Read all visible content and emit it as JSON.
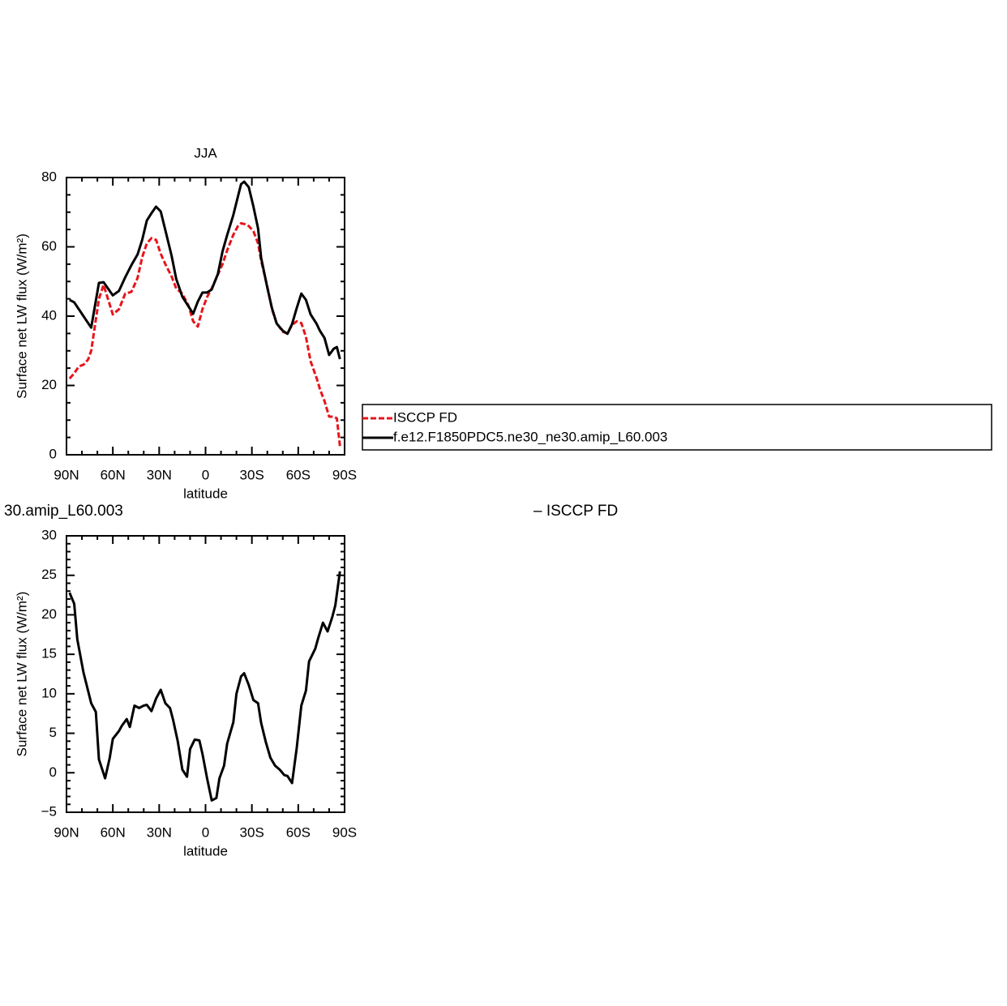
{
  "chart_data": [
    {
      "type": "line",
      "title": "JJA",
      "xlabel": "latitude",
      "ylabel": "Surface net LW flux (W/m²)",
      "x": [
        88,
        85,
        82,
        79,
        76,
        74,
        69,
        66,
        60,
        56,
        52,
        48,
        44,
        41,
        38,
        35,
        32,
        29,
        26,
        22,
        19,
        15,
        11,
        8,
        5,
        2,
        -1,
        -4,
        -8,
        -11,
        -14,
        -18,
        -21,
        -23,
        -25,
        -28,
        -31,
        -34,
        -36,
        -40,
        -43,
        -46,
        -50,
        -53,
        -56,
        -59,
        -62,
        -65,
        -68,
        -72,
        -74,
        -77,
        -80,
        -83,
        -85,
        -87
      ],
      "series": [
        {
          "name": "ISCCP FD",
          "color": "#e8141b",
          "dashed": true,
          "values": [
            22,
            23.5,
            25.5,
            26,
            27.5,
            30,
            45,
            49,
            40.5,
            42,
            46.5,
            47,
            51,
            57,
            61,
            62.5,
            62,
            58,
            55,
            51.5,
            48,
            46.5,
            43,
            38.5,
            37,
            42,
            45.5,
            48,
            52,
            55,
            59,
            63.5,
            66,
            66.8,
            66.6,
            66,
            64.5,
            61,
            56,
            48.5,
            42,
            38,
            35.5,
            35,
            37.5,
            38.5,
            38,
            34,
            27,
            22,
            19,
            15.5,
            11,
            11,
            10.5,
            2.5
          ]
        },
        {
          "name": "f.e12.F1850PDC5.ne30_ne30.amip_L60.003",
          "color": "#000000",
          "dashed": false,
          "values": [
            44.7,
            44,
            42,
            40,
            38,
            36.7,
            49.6,
            49.8,
            46,
            47.3,
            51.2,
            54.7,
            57.8,
            62,
            67.6,
            69.7,
            71.6,
            70.2,
            64.8,
            57.5,
            50.8,
            45.6,
            42.8,
            40.7,
            44.2,
            46.8,
            46.8,
            47.7,
            52.2,
            58.7,
            63.4,
            69.2,
            74.6,
            78.1,
            78.8,
            77.2,
            71.6,
            65.3,
            56.8,
            48.2,
            42.3,
            37.9,
            35.8,
            34.9,
            37.7,
            42.3,
            46.5,
            44.7,
            40.5,
            37.7,
            35.8,
            33.7,
            28.8,
            30.6,
            31.1,
            27.6
          ]
        }
      ],
      "xlim": [
        90,
        -90
      ],
      "xticks": [
        {
          "value": 90,
          "label": "90N"
        },
        {
          "value": 60,
          "label": "60N"
        },
        {
          "value": 30,
          "label": "30N"
        },
        0,
        {
          "value": -30,
          "label": "30S"
        },
        {
          "value": -60,
          "label": "60S"
        },
        {
          "value": -90,
          "label": "90S"
        }
      ],
      "ylim": [
        0,
        80
      ],
      "yticks": [
        0,
        20,
        40,
        60,
        80
      ],
      "legend": "right"
    },
    {
      "type": "line",
      "title_left": "30.amip_L60.003",
      "title_right": "– ISCCP FD",
      "xlabel": "latitude",
      "ylabel": "Surface net LW flux (W/m²)",
      "x": [
        88,
        85,
        83,
        79,
        74,
        71,
        69,
        65,
        62,
        60,
        56,
        54,
        51,
        49,
        46,
        43,
        40,
        38,
        35,
        32,
        29,
        26,
        23,
        21,
        18,
        15,
        12,
        10,
        7,
        4,
        2,
        -1,
        -4,
        -7,
        -9,
        -12,
        -14,
        -18,
        -20,
        -23,
        -25,
        -28,
        -31,
        -34,
        -36,
        -39,
        -42,
        -45,
        -48,
        -51,
        -53,
        -56,
        -59,
        -62,
        -65,
        -67,
        -71,
        -73,
        -76,
        -79,
        -82,
        -84,
        -87
      ],
      "values": [
        22.8,
        21.4,
        16.9,
        12.7,
        8.8,
        7.7,
        1.7,
        -0.7,
        1.9,
        4.3,
        5.3,
        6.0,
        6.8,
        5.8,
        8.5,
        8.2,
        8.5,
        8.6,
        7.8,
        9.4,
        10.5,
        8.8,
        8.2,
        6.7,
        4.0,
        0.4,
        -0.5,
        3.0,
        4.2,
        4.1,
        2.4,
        -0.7,
        -3.5,
        -3.2,
        -0.7,
        0.9,
        3.7,
        6.4,
        10.0,
        12.2,
        12.6,
        11.1,
        9.2,
        8.8,
        6.3,
        3.9,
        1.9,
        0.9,
        0.4,
        -0.3,
        -0.4,
        -1.3,
        3.1,
        8.5,
        10.4,
        14.1,
        15.7,
        17.1,
        19.0,
        17.9,
        19.7,
        21.2,
        25.5
      ],
      "color": "#000000",
      "xlim": [
        90,
        -90
      ],
      "xticks": [
        {
          "value": 90,
          "label": "90N"
        },
        {
          "value": 60,
          "label": "60N"
        },
        {
          "value": 30,
          "label": "30N"
        },
        0,
        {
          "value": -30,
          "label": "30S"
        },
        {
          "value": -60,
          "label": "60S"
        },
        {
          "value": -90,
          "label": "90S"
        }
      ],
      "ylim": [
        -5,
        30
      ],
      "yticks": [
        {
          "value": -5,
          "label": "−5"
        },
        0,
        5,
        10,
        15,
        20,
        25,
        30
      ]
    }
  ]
}
